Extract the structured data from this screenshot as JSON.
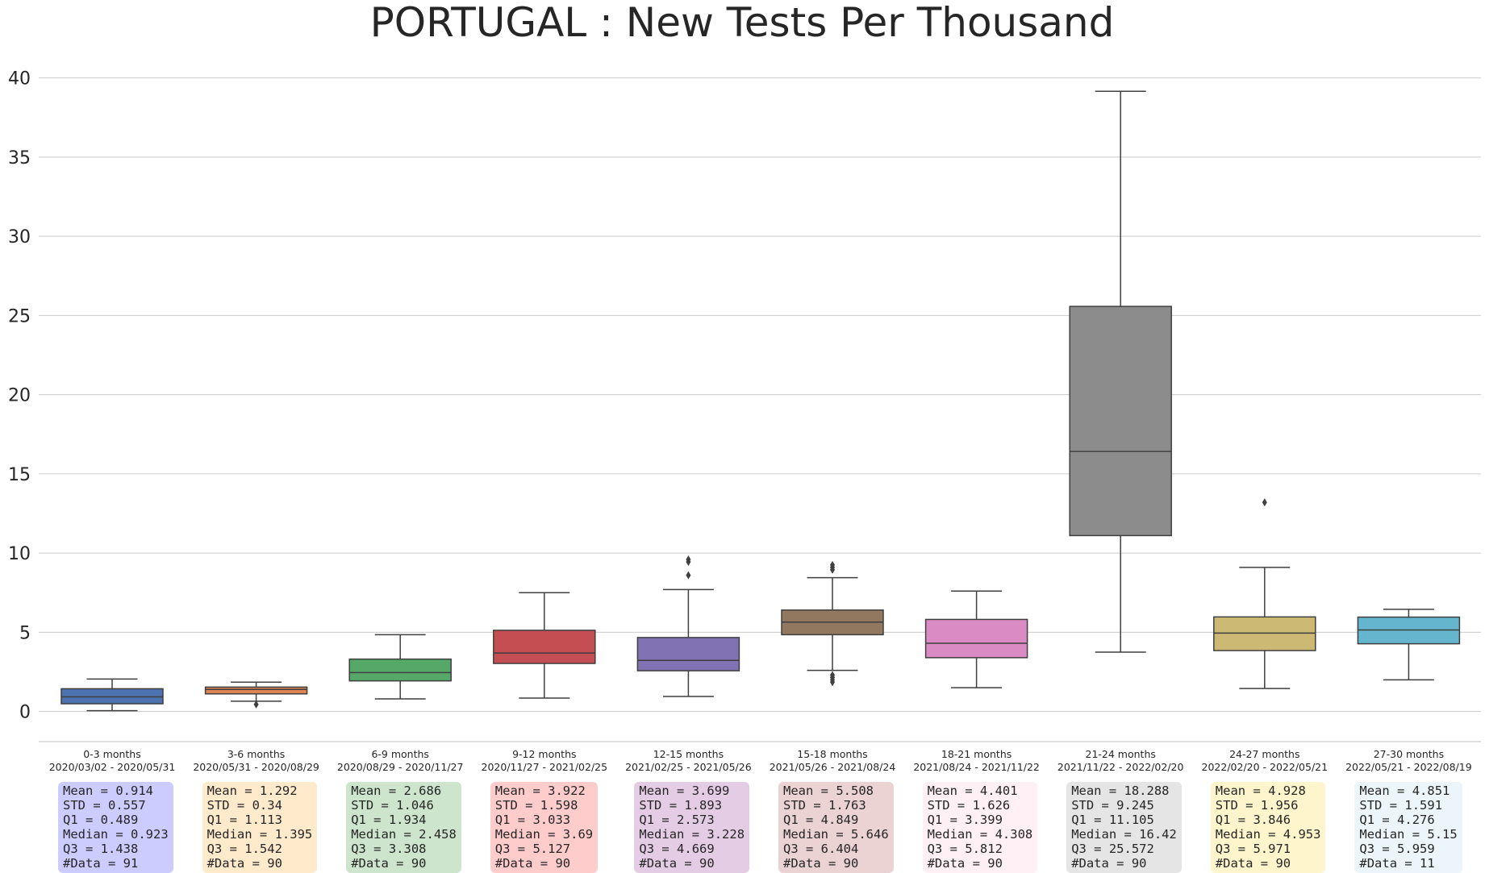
{
  "chart_data": {
    "type": "box",
    "title": "PORTUGAL : New Tests Per Thousand",
    "ylim": [
      -1.9,
      41.2
    ],
    "yticks": [
      "0",
      "5",
      "10",
      "15",
      "20",
      "25",
      "30",
      "35",
      "40"
    ],
    "grid": true,
    "groups": [
      {
        "label": "0-3 months",
        "range": "2020/03/02 - 2020/05/31",
        "color": "#4c72b0",
        "box_bg": "#ccccff",
        "whisker_low": 0.05,
        "q1": 0.489,
        "median": 0.923,
        "q3": 1.438,
        "whisker_high": 2.05,
        "outliers": [],
        "stats": [
          "Mean = 0.914",
          "STD = 0.557",
          "Q1 = 0.489",
          "Median = 0.923",
          "Q3 = 1.438",
          "#Data = 91"
        ]
      },
      {
        "label": "3-6 months",
        "range": "2020/05/31 - 2020/08/29",
        "color": "#dd8452",
        "box_bg": "#ffeacc",
        "whisker_low": 0.65,
        "q1": 1.113,
        "median": 1.395,
        "q3": 1.542,
        "whisker_high": 1.85,
        "outliers": [
          0.45
        ],
        "stats": [
          "Mean = 1.292",
          "STD = 0.34",
          "Q1 = 1.113",
          "Median = 1.395",
          "Q3 = 1.542",
          "#Data = 90"
        ]
      },
      {
        "label": "6-9 months",
        "range": "2020/08/29 - 2020/11/27",
        "color": "#55a868",
        "box_bg": "#cce5cc",
        "whisker_low": 0.8,
        "q1": 1.934,
        "median": 2.458,
        "q3": 3.308,
        "whisker_high": 4.85,
        "outliers": [],
        "stats": [
          "Mean = 2.686",
          "STD = 1.046",
          "Q1 = 1.934",
          "Median = 2.458",
          "Q3 = 3.308",
          "#Data = 90"
        ]
      },
      {
        "label": "9-12 months",
        "range": "2020/11/27 - 2021/02/25",
        "color": "#c44e52",
        "box_bg": "#ffcccc",
        "whisker_low": 0.85,
        "q1": 3.033,
        "median": 3.69,
        "q3": 5.127,
        "whisker_high": 7.5,
        "outliers": [],
        "stats": [
          "Mean = 3.922",
          "STD = 1.598",
          "Q1 = 3.033",
          "Median = 3.69",
          "Q3 = 5.127",
          "#Data = 90"
        ]
      },
      {
        "label": "12-15 months",
        "range": "2021/02/25 - 2021/05/26",
        "color": "#8172b3",
        "box_bg": "#e5cce5",
        "whisker_low": 0.95,
        "q1": 2.573,
        "median": 3.228,
        "q3": 4.669,
        "whisker_high": 7.7,
        "outliers": [
          8.6,
          9.45,
          9.6
        ],
        "stats": [
          "Mean = 3.699",
          "STD = 1.893",
          "Q1 = 2.573",
          "Median = 3.228",
          "Q3 = 4.669",
          "#Data = 90"
        ]
      },
      {
        "label": "15-18 months",
        "range": "2021/05/26 - 2021/08/24",
        "color": "#937860",
        "box_bg": "#ebd3d3",
        "whisker_low": 2.6,
        "q1": 4.849,
        "median": 5.646,
        "q3": 6.404,
        "whisker_high": 8.45,
        "outliers": [
          1.85,
          2.0,
          2.15,
          2.3,
          8.95,
          9.1,
          9.25
        ],
        "stats": [
          "Mean = 5.508",
          "STD = 1.763",
          "Q1 = 4.849",
          "Median = 5.646",
          "Q3 = 6.404",
          "#Data = 90"
        ]
      },
      {
        "label": "18-21 months",
        "range": "2021/08/24 - 2021/11/22",
        "color": "#da8bc3",
        "box_bg": "#fff0f5",
        "whisker_low": 1.5,
        "q1": 3.399,
        "median": 4.308,
        "q3": 5.812,
        "whisker_high": 7.6,
        "outliers": [],
        "stats": [
          "Mean = 4.401",
          "STD = 1.626",
          "Q1 = 3.399",
          "Median = 4.308",
          "Q3 = 5.812",
          "#Data = 90"
        ]
      },
      {
        "label": "21-24 months",
        "range": "2021/11/22 - 2022/02/20",
        "color": "#8c8c8c",
        "box_bg": "#e5e5e5",
        "whisker_low": 3.75,
        "q1": 11.105,
        "median": 16.42,
        "q3": 25.572,
        "whisker_high": 39.15,
        "outliers": [],
        "stats": [
          "Mean = 18.288",
          "STD = 9.245",
          "Q1 = 11.105",
          "Median = 16.42",
          "Q3 = 25.572",
          "#Data = 90"
        ]
      },
      {
        "label": "24-27 months",
        "range": "2022/02/20 - 2022/05/21",
        "color": "#ccb974",
        "box_bg": "#fff5cc",
        "whisker_low": 1.45,
        "q1": 3.846,
        "median": 4.953,
        "q3": 5.971,
        "whisker_high": 9.1,
        "outliers": [
          13.2
        ],
        "stats": [
          "Mean = 4.928",
          "STD = 1.956",
          "Q1 = 3.846",
          "Median = 4.953",
          "Q3 = 5.971",
          "#Data = 90"
        ]
      },
      {
        "label": "27-30 months",
        "range": "2022/05/21 - 2022/08/19",
        "color": "#64b5cd",
        "box_bg": "#ebf5fa",
        "whisker_low": 2.0,
        "q1": 4.276,
        "median": 5.15,
        "q3": 5.959,
        "whisker_high": 6.45,
        "outliers": [],
        "stats": [
          "Mean = 4.851",
          "STD = 1.591",
          "Q1 = 4.276",
          "Median = 5.15",
          "Q3 = 5.959",
          "#Data = 11"
        ]
      }
    ]
  }
}
